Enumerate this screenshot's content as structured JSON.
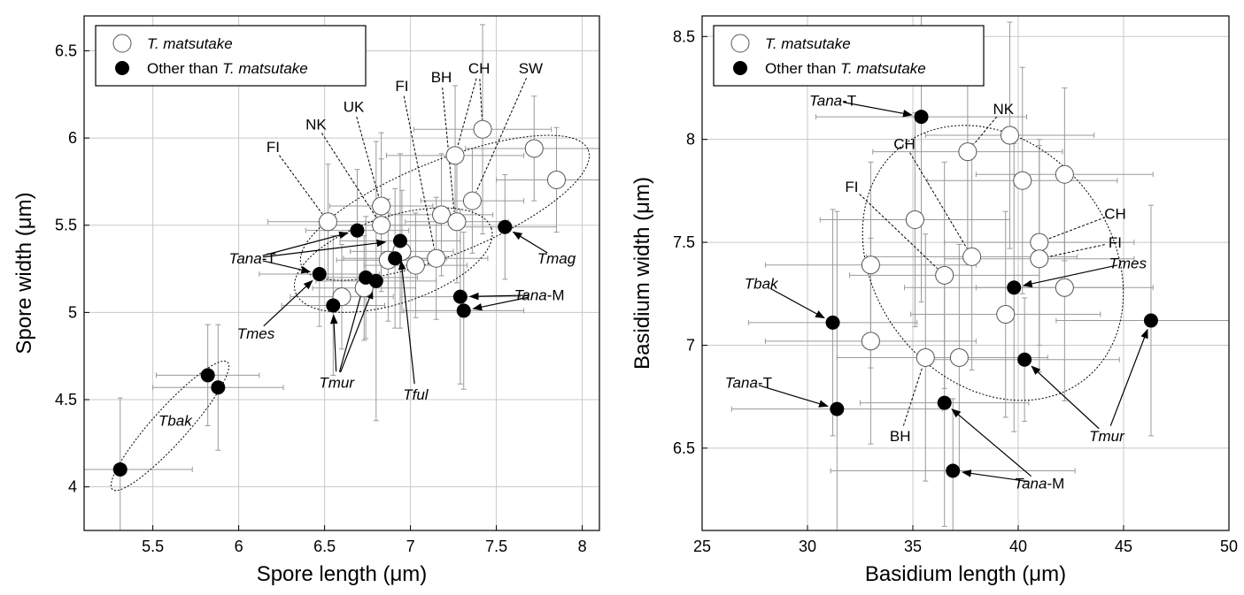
{
  "chart_data": [
    {
      "type": "scatter",
      "xlabel": "Spore length (μm)",
      "ylabel": "Spore width (μm)",
      "xlim": [
        5.1,
        8.1
      ],
      "ylim": [
        3.75,
        6.7
      ],
      "xticks": [
        5.5,
        6,
        6.5,
        7,
        7.5,
        8
      ],
      "yticks": [
        4,
        4.5,
        5,
        5.5,
        6,
        6.5
      ],
      "grid": true,
      "legend_position": "top-left",
      "legend": [
        {
          "name": "T. matsutake",
          "name_parts": [
            {
              "t": "T. matsutake",
              "i": true
            }
          ],
          "marker": "open-circle"
        },
        {
          "name": "Other than T. matsutake",
          "name_parts": [
            {
              "t": "Other than ",
              "i": false
            },
            {
              "t": "T. matsutake",
              "i": true
            }
          ],
          "marker": "filled-circle"
        }
      ],
      "series": [
        {
          "name": "T. matsutake",
          "marker": "open-circle",
          "points": [
            {
              "x": 6.52,
              "y": 5.52,
              "xerr": 0.35,
              "yerr": 0.33
            },
            {
              "x": 6.83,
              "y": 5.61,
              "xerr": 0.3,
              "yerr": 0.42
            },
            {
              "x": 6.83,
              "y": 5.5,
              "xerr": 0.35,
              "yerr": 0.38
            },
            {
              "x": 6.6,
              "y": 5.09,
              "xerr": 0.3,
              "yerr": 0.3
            },
            {
              "x": 6.73,
              "y": 5.14,
              "xerr": 0.3,
              "yerr": 0.3
            },
            {
              "x": 6.87,
              "y": 5.3,
              "xerr": 0.3,
              "yerr": 0.35
            },
            {
              "x": 6.95,
              "y": 5.35,
              "xerr": 0.3,
              "yerr": 0.35
            },
            {
              "x": 7.03,
              "y": 5.27,
              "xerr": 0.3,
              "yerr": 0.3
            },
            {
              "x": 7.15,
              "y": 5.31,
              "xerr": 0.3,
              "yerr": 0.35
            },
            {
              "x": 7.18,
              "y": 5.56,
              "xerr": 0.3,
              "yerr": 0.35
            },
            {
              "x": 7.27,
              "y": 5.52,
              "xerr": 0.3,
              "yerr": 0.35
            },
            {
              "x": 7.26,
              "y": 5.9,
              "xerr": 0.4,
              "yerr": 0.4
            },
            {
              "x": 7.36,
              "y": 5.64,
              "xerr": 0.3,
              "yerr": 0.3
            },
            {
              "x": 7.42,
              "y": 6.05,
              "xerr": 0.4,
              "yerr": 0.6
            },
            {
              "x": 7.72,
              "y": 5.94,
              "xerr": 0.4,
              "yerr": 0.3
            },
            {
              "x": 7.85,
              "y": 5.76,
              "xerr": 0.35,
              "yerr": 0.3
            }
          ]
        },
        {
          "name": "Other than T. matsutake",
          "marker": "filled-circle",
          "points": [
            {
              "x": 5.31,
              "y": 4.1,
              "xerr": 0.42,
              "yerr": 0.41
            },
            {
              "x": 5.82,
              "y": 4.64,
              "xerr": 0.3,
              "yerr": 0.29
            },
            {
              "x": 5.88,
              "y": 4.57,
              "xerr": 0.38,
              "yerr": 0.36
            },
            {
              "x": 6.47,
              "y": 5.22,
              "xerr": 0.35,
              "yerr": 0.3
            },
            {
              "x": 6.55,
              "y": 5.04,
              "xerr": 0.3,
              "yerr": 0.4
            },
            {
              "x": 6.69,
              "y": 5.47,
              "xerr": 0.3,
              "yerr": 0.35
            },
            {
              "x": 6.74,
              "y": 5.2,
              "xerr": 0.3,
              "yerr": 0.35
            },
            {
              "x": 6.8,
              "y": 5.18,
              "xerr": 0.35,
              "yerr": 0.8
            },
            {
              "x": 6.91,
              "y": 5.31,
              "xerr": 0.3,
              "yerr": 0.4
            },
            {
              "x": 6.94,
              "y": 5.41,
              "xerr": 0.35,
              "yerr": 0.5
            },
            {
              "x": 7.29,
              "y": 5.09,
              "xerr": 0.35,
              "yerr": 0.5
            },
            {
              "x": 7.31,
              "y": 5.01,
              "xerr": 0.35,
              "yerr": 0.45
            },
            {
              "x": 7.55,
              "y": 5.49,
              "xerr": 0.3,
              "yerr": 0.3
            }
          ]
        }
      ],
      "annotations": [
        {
          "text": "FI",
          "text_parts": [
            {
              "t": "FI",
              "i": false
            }
          ],
          "x": 6.2,
          "y": 5.95,
          "targets": [
            [
              6.52,
              5.52
            ]
          ],
          "style": "dashed"
        },
        {
          "text": "NK",
          "text_parts": [
            {
              "t": "NK",
              "i": false
            }
          ],
          "x": 6.45,
          "y": 6.08,
          "targets": [
            [
              6.83,
              5.5
            ]
          ],
          "style": "dashed"
        },
        {
          "text": "UK",
          "text_parts": [
            {
              "t": "UK",
              "i": false
            }
          ],
          "x": 6.67,
          "y": 6.18,
          "targets": [
            [
              6.83,
              5.61
            ]
          ],
          "style": "dashed"
        },
        {
          "text": "FI",
          "text_parts": [
            {
              "t": "FI",
              "i": false
            }
          ],
          "x": 6.95,
          "y": 6.3,
          "targets": [
            [
              7.15,
              5.31
            ]
          ],
          "style": "dashed"
        },
        {
          "text": "BH",
          "text_parts": [
            {
              "t": "BH",
              "i": false
            }
          ],
          "x": 7.18,
          "y": 6.35,
          "targets": [
            [
              7.26,
              5.52
            ]
          ],
          "style": "dashed"
        },
        {
          "text": "CH",
          "text_parts": [
            {
              "t": "CH",
              "i": false
            }
          ],
          "x": 7.4,
          "y": 6.4,
          "targets": [
            [
              7.26,
              5.9
            ],
            [
              7.42,
              6.05
            ]
          ],
          "style": "dashed"
        },
        {
          "text": "SW",
          "text_parts": [
            {
              "t": "SW",
              "i": false
            }
          ],
          "x": 7.7,
          "y": 6.4,
          "targets": [
            [
              7.36,
              5.64
            ]
          ],
          "style": "dashed"
        },
        {
          "text": "Tana-T",
          "text_parts": [
            {
              "t": "Tana",
              "i": true
            },
            {
              "t": "-T",
              "i": false
            }
          ],
          "x": 6.08,
          "y": 5.31,
          "targets": [
            [
              6.69,
              5.47
            ],
            [
              6.91,
              5.41
            ],
            [
              6.47,
              5.22
            ]
          ],
          "style": "arrow"
        },
        {
          "text": "Tmag",
          "text_parts": [
            {
              "t": "Tmag",
              "i": true
            }
          ],
          "x": 7.85,
          "y": 5.31,
          "targets": [
            [
              7.55,
              5.49
            ]
          ],
          "style": "arrow"
        },
        {
          "text": "Tmes",
          "text_parts": [
            {
              "t": "Tmes",
              "i": true
            }
          ],
          "x": 6.1,
          "y": 4.88,
          "targets": [
            [
              6.47,
              5.22
            ]
          ],
          "style": "arrow"
        },
        {
          "text": "Tana-M",
          "text_parts": [
            {
              "t": "Tana",
              "i": true
            },
            {
              "t": "-M",
              "i": false
            }
          ],
          "x": 7.75,
          "y": 5.1,
          "targets": [
            [
              7.29,
              5.09
            ],
            [
              7.31,
              5.01
            ]
          ],
          "style": "arrow"
        },
        {
          "text": "Tmur",
          "text_parts": [
            {
              "t": "Tmur",
              "i": true
            }
          ],
          "x": 6.57,
          "y": 4.6,
          "targets": [
            [
              6.55,
              5.04
            ],
            [
              6.74,
              5.2
            ],
            [
              6.8,
              5.18
            ]
          ],
          "style": "arrow"
        },
        {
          "text": "Tful",
          "text_parts": [
            {
              "t": "Tful",
              "i": true
            }
          ],
          "x": 7.03,
          "y": 4.53,
          "targets": [
            [
              6.94,
              5.35
            ]
          ],
          "style": "arrow"
        },
        {
          "text": "Tbak",
          "text_parts": [
            {
              "t": "Tbak",
              "i": true
            }
          ],
          "x": 5.63,
          "y": 4.38,
          "targets": [],
          "style": "none"
        }
      ],
      "ellipses": [
        {
          "cx": 7.2,
          "cy": 5.6,
          "rx": 0.9,
          "ry": 0.27,
          "rotate": -22
        },
        {
          "cx": 6.9,
          "cy": 5.3,
          "rx": 0.6,
          "ry": 0.25,
          "rotate": -18
        },
        {
          "cx": 5.6,
          "cy": 4.35,
          "rx": 0.5,
          "ry": 0.1,
          "rotate": -48
        }
      ]
    },
    {
      "type": "scatter",
      "xlabel": "Basidium length (μm)",
      "ylabel": "Basidium width (μm)",
      "xlim": [
        25,
        50
      ],
      "ylim": [
        6.1,
        8.6
      ],
      "xticks": [
        25,
        30,
        35,
        40,
        45,
        50
      ],
      "yticks": [
        6.5,
        7,
        7.5,
        8,
        8.5
      ],
      "grid": true,
      "legend_position": "top-left",
      "legend": [
        {
          "name": "T. matsutake",
          "name_parts": [
            {
              "t": "T. matsutake",
              "i": true
            }
          ],
          "marker": "open-circle"
        },
        {
          "name": "Other than T. matsutake",
          "name_parts": [
            {
              "t": "Other than ",
              "i": false
            },
            {
              "t": "T. matsutake",
              "i": true
            }
          ],
          "marker": "filled-circle"
        }
      ],
      "series": [
        {
          "name": "T. matsutake",
          "marker": "open-circle",
          "points": [
            {
              "x": 33,
              "y": 7.39,
              "xerr": 5,
              "yerr": 0.5
            },
            {
              "x": 33,
              "y": 7.02,
              "xerr": 5,
              "yerr": 0.5
            },
            {
              "x": 35.1,
              "y": 7.61,
              "xerr": 4.5,
              "yerr": 0.52
            },
            {
              "x": 35.6,
              "y": 6.94,
              "xerr": 4.2,
              "yerr": 0.6
            },
            {
              "x": 36.5,
              "y": 7.34,
              "xerr": 4.5,
              "yerr": 0.55
            },
            {
              "x": 37.2,
              "y": 6.94,
              "xerr": 4.2,
              "yerr": 0.55
            },
            {
              "x": 37.6,
              "y": 7.94,
              "xerr": 4.5,
              "yerr": 0.55
            },
            {
              "x": 37.8,
              "y": 7.43,
              "xerr": 5,
              "yerr": 0.55
            },
            {
              "x": 39.4,
              "y": 7.15,
              "xerr": 4.5,
              "yerr": 0.5
            },
            {
              "x": 39.6,
              "y": 8.02,
              "xerr": 4,
              "yerr": 0.55
            },
            {
              "x": 40.2,
              "y": 7.8,
              "xerr": 4.5,
              "yerr": 0.55
            },
            {
              "x": 41,
              "y": 7.5,
              "xerr": 4.5,
              "yerr": 0.5
            },
            {
              "x": 41,
              "y": 7.42,
              "xerr": 4.5,
              "yerr": 0.55
            },
            {
              "x": 42.2,
              "y": 7.83,
              "xerr": 4.2,
              "yerr": 0.42
            },
            {
              "x": 42.2,
              "y": 7.28,
              "xerr": 4.2,
              "yerr": 0.55
            }
          ]
        },
        {
          "name": "Other than T. matsutake",
          "marker": "filled-circle",
          "points": [
            {
              "x": 31.2,
              "y": 7.11,
              "xerr": 4,
              "yerr": 0.55
            },
            {
              "x": 31.4,
              "y": 6.69,
              "xerr": 5,
              "yerr": 0.96
            },
            {
              "x": 35.4,
              "y": 8.11,
              "xerr": 5,
              "yerr": 0.9
            },
            {
              "x": 36.5,
              "y": 6.72,
              "xerr": 4,
              "yerr": 0.6
            },
            {
              "x": 36.9,
              "y": 6.39,
              "xerr": 5.8,
              "yerr": 0.35
            },
            {
              "x": 39.8,
              "y": 7.28,
              "xerr": 5.2,
              "yerr": 0.7
            },
            {
              "x": 40.3,
              "y": 6.93,
              "xerr": 4.5,
              "yerr": 0.3
            },
            {
              "x": 46.3,
              "y": 7.12,
              "xerr": 4.5,
              "yerr": 0.56
            }
          ]
        }
      ],
      "annotations": [
        {
          "text": "Tana-T",
          "text_parts": [
            {
              "t": "Tana",
              "i": true
            },
            {
              "t": "-T",
              "i": false
            }
          ],
          "x": 31.2,
          "y": 8.19,
          "targets": [
            [
              35.4,
              8.11
            ]
          ],
          "style": "arrow"
        },
        {
          "text": "NK",
          "text_parts": [
            {
              "t": "NK",
              "i": false
            }
          ],
          "x": 39.3,
          "y": 8.15,
          "targets": [
            [
              37.6,
              7.94
            ]
          ],
          "style": "dashed"
        },
        {
          "text": "CH",
          "text_parts": [
            {
              "t": "CH",
              "i": false
            }
          ],
          "x": 34.6,
          "y": 7.98,
          "targets": [
            [
              37.8,
              7.43
            ]
          ],
          "style": "dashed"
        },
        {
          "text": "FI",
          "text_parts": [
            {
              "t": "FI",
              "i": false
            }
          ],
          "x": 32.1,
          "y": 7.77,
          "targets": [
            [
              36.5,
              7.34
            ]
          ],
          "style": "dashed"
        },
        {
          "text": "CH",
          "text_parts": [
            {
              "t": "CH",
              "i": false
            }
          ],
          "x": 44.6,
          "y": 7.64,
          "targets": [
            [
              41,
              7.5
            ]
          ],
          "style": "dashed"
        },
        {
          "text": "FI",
          "text_parts": [
            {
              "t": "FI",
              "i": false
            }
          ],
          "x": 44.6,
          "y": 7.5,
          "targets": [
            [
              41,
              7.42
            ]
          ],
          "style": "dashed"
        },
        {
          "text": "Tmes",
          "text_parts": [
            {
              "t": "Tmes",
              "i": true
            }
          ],
          "x": 45.2,
          "y": 7.4,
          "targets": [
            [
              39.8,
              7.28
            ]
          ],
          "style": "arrow"
        },
        {
          "text": "Tbak",
          "text_parts": [
            {
              "t": "Tbak",
              "i": true
            }
          ],
          "x": 27.8,
          "y": 7.3,
          "targets": [
            [
              31.2,
              7.11
            ]
          ],
          "style": "arrow"
        },
        {
          "text": "Tana-T",
          "text_parts": [
            {
              "t": "Tana",
              "i": true
            },
            {
              "t": "-T",
              "i": false
            }
          ],
          "x": 27.2,
          "y": 6.82,
          "targets": [
            [
              31.4,
              6.69
            ]
          ],
          "style": "arrow"
        },
        {
          "text": "Tmur",
          "text_parts": [
            {
              "t": "Tmur",
              "i": true
            }
          ],
          "x": 44.2,
          "y": 6.56,
          "targets": [
            [
              40.3,
              6.93
            ],
            [
              46.3,
              7.12
            ]
          ],
          "style": "arrow"
        },
        {
          "text": "BH",
          "text_parts": [
            {
              "t": "BH",
              "i": false
            }
          ],
          "x": 34.4,
          "y": 6.56,
          "targets": [
            [
              35.6,
              6.94
            ]
          ],
          "style": "dashed"
        },
        {
          "text": "Tana-M",
          "text_parts": [
            {
              "t": "Tana",
              "i": true
            },
            {
              "t": "-M",
              "i": false
            }
          ],
          "x": 41,
          "y": 6.33,
          "targets": [
            [
              36.5,
              6.72
            ],
            [
              36.9,
              6.39
            ]
          ],
          "style": "arrow"
        }
      ],
      "ellipses": [
        {
          "cx": 38.8,
          "cy": 7.4,
          "rx": 5.6,
          "ry": 0.72,
          "rotate": -38
        }
      ]
    }
  ]
}
